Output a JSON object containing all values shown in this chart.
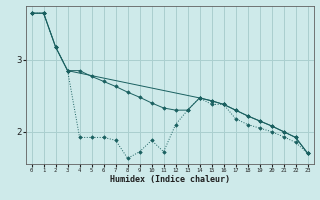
{
  "xlabel": "Humidex (Indice chaleur)",
  "bg_color": "#ceeaea",
  "grid_color": "#aacfcf",
  "line_color": "#1a6060",
  "xlim": [
    -0.5,
    23.5
  ],
  "ylim": [
    1.55,
    3.75
  ],
  "yticks": [
    2,
    3
  ],
  "xticks": [
    0,
    1,
    2,
    3,
    4,
    5,
    6,
    7,
    8,
    9,
    10,
    11,
    12,
    13,
    14,
    15,
    16,
    17,
    18,
    19,
    20,
    21,
    22,
    23
  ],
  "series1_dotted": {
    "x": [
      0,
      1,
      2,
      3,
      4,
      5,
      6,
      7,
      8,
      9,
      10,
      11,
      12,
      13,
      14,
      15,
      16,
      17,
      18,
      19,
      20,
      21,
      22,
      23
    ],
    "y": [
      3.65,
      3.65,
      3.18,
      2.85,
      1.92,
      1.92,
      1.92,
      1.88,
      1.63,
      1.72,
      1.88,
      1.72,
      2.1,
      2.3,
      2.47,
      2.38,
      2.38,
      2.18,
      2.1,
      2.05,
      2.0,
      1.93,
      1.85,
      1.7
    ]
  },
  "series2_solid": {
    "x": [
      0,
      1,
      2,
      3,
      4,
      5,
      6,
      7,
      8,
      9,
      10,
      11,
      12,
      13,
      14,
      15,
      16,
      17,
      18,
      19,
      20,
      21,
      22,
      23
    ],
    "y": [
      3.65,
      3.65,
      3.18,
      2.85,
      2.85,
      2.77,
      2.7,
      2.63,
      2.55,
      2.48,
      2.4,
      2.33,
      2.3,
      2.3,
      2.47,
      2.43,
      2.38,
      2.3,
      2.22,
      2.15,
      2.08,
      2.0,
      1.92,
      1.7
    ]
  },
  "series3_solid": {
    "x": [
      0,
      1,
      2,
      3,
      14,
      15,
      16,
      17,
      18,
      19,
      20,
      21,
      22,
      23
    ],
    "y": [
      3.65,
      3.65,
      3.18,
      2.85,
      2.47,
      2.43,
      2.38,
      2.3,
      2.22,
      2.15,
      2.08,
      2.0,
      1.92,
      1.7
    ]
  }
}
